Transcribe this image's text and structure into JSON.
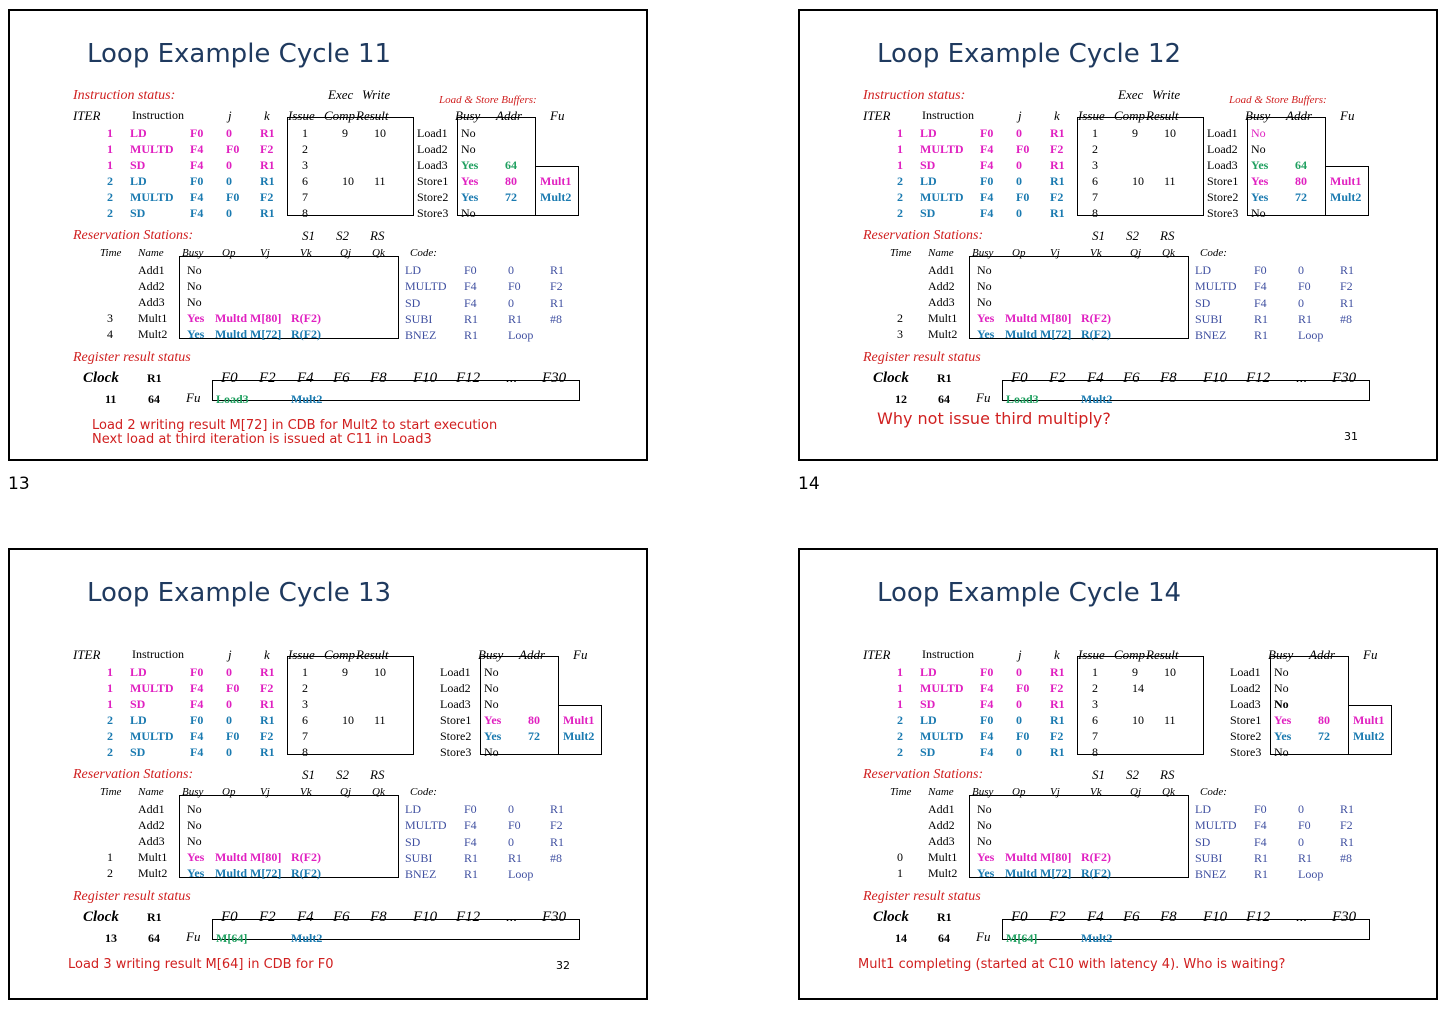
{
  "slides": [
    {
      "page_number": "13",
      "title": "Loop Example Cycle 11",
      "show_instruction_status_label": true,
      "show_buffers_label": true,
      "slide_number": "",
      "instr_header_top": [
        "Exec",
        "Write"
      ],
      "instr_header": [
        "ITER",
        "Instruction",
        "j",
        "k",
        "Issue",
        "Comp",
        "Result"
      ],
      "instructions": [
        {
          "iter": "1",
          "op": "LD",
          "j": "F0",
          "k": "0",
          "kr": "R1",
          "issue": "1",
          "comp": "9",
          "result": "10",
          "color": "mag"
        },
        {
          "iter": "1",
          "op": "MULTD",
          "j": "F4",
          "k": "F0",
          "kr": "F2",
          "issue": "2",
          "comp": "",
          "result": "",
          "color": "mag"
        },
        {
          "iter": "1",
          "op": "SD",
          "j": "F4",
          "k": "0",
          "kr": "R1",
          "issue": "3",
          "comp": "",
          "result": "",
          "color": "mag"
        },
        {
          "iter": "2",
          "op": "LD",
          "j": "F0",
          "k": "0",
          "kr": "R1",
          "issue": "6",
          "comp": "10",
          "result": "11",
          "color": "blu"
        },
        {
          "iter": "2",
          "op": "MULTD",
          "j": "F4",
          "k": "F0",
          "kr": "F2",
          "issue": "7",
          "comp": "",
          "result": "",
          "color": "blu"
        },
        {
          "iter": "2",
          "op": "SD",
          "j": "F4",
          "k": "0",
          "kr": "R1",
          "issue": "8",
          "comp": "",
          "result": "",
          "color": "blu"
        }
      ],
      "buffers_label": "Load & Store Buffers:",
      "buffers_header": [
        "Busy",
        "Addr",
        "Fu"
      ],
      "buffers": [
        {
          "name": "Load1",
          "busy": "No",
          "addr": "",
          "fu": "",
          "color": ""
        },
        {
          "name": "Load2",
          "busy": "No",
          "addr": "",
          "fu": "",
          "color": ""
        },
        {
          "name": "Load3",
          "busy": "Yes",
          "addr": "64",
          "fu": "",
          "color": "grn"
        },
        {
          "name": "Store1",
          "busy": "Yes",
          "addr": "80",
          "fu": "Mult1",
          "color": "mag"
        },
        {
          "name": "Store2",
          "busy": "Yes",
          "addr": "72",
          "fu": "Mult2",
          "color": "blu"
        },
        {
          "name": "Store3",
          "busy": "No",
          "addr": "",
          "fu": "",
          "color": ""
        }
      ],
      "rs_label": "Reservation Stations:",
      "rs_header_top": [
        "S1",
        "S2",
        "RS"
      ],
      "rs_header": [
        "Time",
        "Name",
        "Busy",
        "Op",
        "Vj",
        "Vk",
        "Qj",
        "Qk"
      ],
      "rs": [
        {
          "time": "",
          "name": "Add1",
          "busy": "No",
          "op": "",
          "vj": "",
          "vk": "",
          "color": ""
        },
        {
          "time": "",
          "name": "Add2",
          "busy": "No",
          "op": "",
          "vj": "",
          "vk": "",
          "color": ""
        },
        {
          "time": "",
          "name": "Add3",
          "busy": "No",
          "op": "",
          "vj": "",
          "vk": "",
          "color": ""
        },
        {
          "time": "3",
          "name": "Mult1",
          "busy": "Yes",
          "op": "Multd",
          "vj": "M[80]",
          "vk": "R(F2)",
          "color": "mag"
        },
        {
          "time": "4",
          "name": "Mult2",
          "busy": "Yes",
          "op": "Multd",
          "vj": "M[72]",
          "vk": "R(F2)",
          "color": "blu"
        }
      ],
      "code_label": "Code:",
      "code": [
        [
          "LD",
          "F0",
          "0",
          "R1"
        ],
        [
          "MULTD",
          "F4",
          "F0",
          "F2"
        ],
        [
          "SD",
          "F4",
          "0",
          "R1"
        ],
        [
          "SUBI",
          "R1",
          "R1",
          "#8"
        ],
        [
          "BNEZ",
          "R1",
          "Loop",
          ""
        ]
      ],
      "reg_label": "Register result status",
      "reg_header": [
        "Clock",
        "R1",
        "F0",
        "F2",
        "F4",
        "F6",
        "F8",
        "F10",
        "F12",
        "...",
        "F30"
      ],
      "clock": "11",
      "r1": "64",
      "fu_label": "Fu",
      "reg_f0": "Load3",
      "reg_f0_color": "grn",
      "reg_f4": "Mult2",
      "notes": [
        "Load 2 writing result M[72] in CDB for Mult2 to start execution",
        "Next load at third iteration is issued at C11 in Load3"
      ],
      "load3_bold": false
    },
    {
      "page_number": "14",
      "title": "Loop Example Cycle 12",
      "show_instruction_status_label": true,
      "show_buffers_label": true,
      "slide_number": "31",
      "instr_header_top": [
        "Exec",
        "Write"
      ],
      "instr_header": [
        "ITER",
        "Instruction",
        "j",
        "k",
        "Issue",
        "Comp",
        "Result"
      ],
      "instructions": [
        {
          "iter": "1",
          "op": "LD",
          "j": "F0",
          "k": "0",
          "kr": "R1",
          "issue": "1",
          "comp": "9",
          "result": "10",
          "color": "mag"
        },
        {
          "iter": "1",
          "op": "MULTD",
          "j": "F4",
          "k": "F0",
          "kr": "F2",
          "issue": "2",
          "comp": "",
          "result": "",
          "color": "mag"
        },
        {
          "iter": "1",
          "op": "SD",
          "j": "F4",
          "k": "0",
          "kr": "R1",
          "issue": "3",
          "comp": "",
          "result": "",
          "color": "mag"
        },
        {
          "iter": "2",
          "op": "LD",
          "j": "F0",
          "k": "0",
          "kr": "R1",
          "issue": "6",
          "comp": "10",
          "result": "11",
          "color": "blu"
        },
        {
          "iter": "2",
          "op": "MULTD",
          "j": "F4",
          "k": "F0",
          "kr": "F2",
          "issue": "7",
          "comp": "",
          "result": "",
          "color": "blu"
        },
        {
          "iter": "2",
          "op": "SD",
          "j": "F4",
          "k": "0",
          "kr": "R1",
          "issue": "8",
          "comp": "",
          "result": "",
          "color": "blu"
        }
      ],
      "buffers_label": "Load & Store Buffers:",
      "buffers_header": [
        "Busy",
        "Addr",
        "Fu"
      ],
      "buffers": [
        {
          "name": "Load1",
          "busy": "No",
          "addr": "",
          "fu": "",
          "color": "magnorm"
        },
        {
          "name": "Load2",
          "busy": "No",
          "addr": "",
          "fu": "",
          "color": ""
        },
        {
          "name": "Load3",
          "busy": "Yes",
          "addr": "64",
          "fu": "",
          "color": "grn"
        },
        {
          "name": "Store1",
          "busy": "Yes",
          "addr": "80",
          "fu": "Mult1",
          "color": "mag"
        },
        {
          "name": "Store2",
          "busy": "Yes",
          "addr": "72",
          "fu": "Mult2",
          "color": "blu"
        },
        {
          "name": "Store3",
          "busy": "No",
          "addr": "",
          "fu": "",
          "color": ""
        }
      ],
      "rs_label": "Reservation Stations:",
      "rs_header_top": [
        "S1",
        "S2",
        "RS"
      ],
      "rs_header": [
        "Time",
        "Name",
        "Busy",
        "Op",
        "Vj",
        "Vk",
        "Qj",
        "Qk"
      ],
      "rs": [
        {
          "time": "",
          "name": "Add1",
          "busy": "No",
          "op": "",
          "vj": "",
          "vk": "",
          "color": ""
        },
        {
          "time": "",
          "name": "Add2",
          "busy": "No",
          "op": "",
          "vj": "",
          "vk": "",
          "color": ""
        },
        {
          "time": "",
          "name": "Add3",
          "busy": "No",
          "op": "",
          "vj": "",
          "vk": "",
          "color": ""
        },
        {
          "time": "2",
          "name": "Mult1",
          "busy": "Yes",
          "op": "Multd",
          "vj": "M[80]",
          "vk": "R(F2)",
          "color": "mag"
        },
        {
          "time": "3",
          "name": "Mult2",
          "busy": "Yes",
          "op": "Multd",
          "vj": "M[72]",
          "vk": "R(F2)",
          "color": "blu"
        }
      ],
      "code_label": "Code:",
      "code": [
        [
          "LD",
          "F0",
          "0",
          "R1"
        ],
        [
          "MULTD",
          "F4",
          "F0",
          "F2"
        ],
        [
          "SD",
          "F4",
          "0",
          "R1"
        ],
        [
          "SUBI",
          "R1",
          "R1",
          "#8"
        ],
        [
          "BNEZ",
          "R1",
          "Loop",
          ""
        ]
      ],
      "reg_label": "Register result status",
      "reg_header": [
        "Clock",
        "R1",
        "F0",
        "F2",
        "F4",
        "F6",
        "F8",
        "F10",
        "F12",
        "...",
        "F30"
      ],
      "clock": "12",
      "r1": "64",
      "fu_label": "Fu",
      "reg_f0": "Load3",
      "reg_f0_color": "grn",
      "reg_f4": "Mult2",
      "notes": [
        "Why not issue third multiply?"
      ],
      "load3_bold": false
    },
    {
      "page_number": "",
      "title": "Loop Example Cycle 13",
      "show_instruction_status_label": false,
      "show_buffers_label": false,
      "slide_number": "32",
      "instr_header_top": [
        "",
        ""
      ],
      "instr_header": [
        "ITER",
        "Instruction",
        "j",
        "k",
        "Issue",
        "Comp",
        "Result"
      ],
      "instructions": [
        {
          "iter": "1",
          "op": "LD",
          "j": "F0",
          "k": "0",
          "kr": "R1",
          "issue": "1",
          "comp": "9",
          "result": "10",
          "color": "mag"
        },
        {
          "iter": "1",
          "op": "MULTD",
          "j": "F4",
          "k": "F0",
          "kr": "F2",
          "issue": "2",
          "comp": "",
          "result": "",
          "color": "mag"
        },
        {
          "iter": "1",
          "op": "SD",
          "j": "F4",
          "k": "0",
          "kr": "R1",
          "issue": "3",
          "comp": "",
          "result": "",
          "color": "mag"
        },
        {
          "iter": "2",
          "op": "LD",
          "j": "F0",
          "k": "0",
          "kr": "R1",
          "issue": "6",
          "comp": "10",
          "result": "11",
          "color": "blu"
        },
        {
          "iter": "2",
          "op": "MULTD",
          "j": "F4",
          "k": "F0",
          "kr": "F2",
          "issue": "7",
          "comp": "",
          "result": "",
          "color": "blu"
        },
        {
          "iter": "2",
          "op": "SD",
          "j": "F4",
          "k": "0",
          "kr": "R1",
          "issue": "8",
          "comp": "",
          "result": "",
          "color": "blu"
        }
      ],
      "buffers_label": "",
      "buffers_header": [
        "Busy",
        "Addr",
        "Fu"
      ],
      "buffers": [
        {
          "name": "Load1",
          "busy": "No",
          "addr": "",
          "fu": "",
          "color": ""
        },
        {
          "name": "Load2",
          "busy": "No",
          "addr": "",
          "fu": "",
          "color": ""
        },
        {
          "name": "Load3",
          "busy": "No",
          "addr": "",
          "fu": "",
          "color": ""
        },
        {
          "name": "Store1",
          "busy": "Yes",
          "addr": "80",
          "fu": "Mult1",
          "color": "mag"
        },
        {
          "name": "Store2",
          "busy": "Yes",
          "addr": "72",
          "fu": "Mult2",
          "color": "blu"
        },
        {
          "name": "Store3",
          "busy": "No",
          "addr": "",
          "fu": "",
          "color": ""
        }
      ],
      "rs_label": "Reservation Stations:",
      "rs_header_top": [
        "S1",
        "S2",
        "RS"
      ],
      "rs_header": [
        "Time",
        "Name",
        "Busy",
        "Op",
        "Vj",
        "Vk",
        "Qj",
        "Qk"
      ],
      "rs": [
        {
          "time": "",
          "name": "Add1",
          "busy": "No",
          "op": "",
          "vj": "",
          "vk": "",
          "color": ""
        },
        {
          "time": "",
          "name": "Add2",
          "busy": "No",
          "op": "",
          "vj": "",
          "vk": "",
          "color": ""
        },
        {
          "time": "",
          "name": "Add3",
          "busy": "No",
          "op": "",
          "vj": "",
          "vk": "",
          "color": ""
        },
        {
          "time": "1",
          "name": "Mult1",
          "busy": "Yes",
          "op": "Multd",
          "vj": "M[80]",
          "vk": "R(F2)",
          "color": "mag"
        },
        {
          "time": "2",
          "name": "Mult2",
          "busy": "Yes",
          "op": "Multd",
          "vj": "M[72]",
          "vk": "R(F2)",
          "color": "blu"
        }
      ],
      "code_label": "Code:",
      "code": [
        [
          "LD",
          "F0",
          "0",
          "R1"
        ],
        [
          "MULTD",
          "F4",
          "F0",
          "F2"
        ],
        [
          "SD",
          "F4",
          "0",
          "R1"
        ],
        [
          "SUBI",
          "R1",
          "R1",
          "#8"
        ],
        [
          "BNEZ",
          "R1",
          "Loop",
          ""
        ]
      ],
      "reg_label": "Register result status",
      "reg_header": [
        "Clock",
        "R1",
        "F0",
        "F2",
        "F4",
        "F6",
        "F8",
        "F10",
        "F12",
        "...",
        "F30"
      ],
      "clock": "13",
      "r1": "64",
      "fu_label": "Fu",
      "reg_f0": "M[64]",
      "reg_f0_color": "grn",
      "reg_f4": "Mult2",
      "notes": [
        "Load 3 writing result M[64] in CDB for F0"
      ],
      "load3_bold": false
    },
    {
      "page_number": "",
      "title": "Loop Example Cycle 14",
      "show_instruction_status_label": false,
      "show_buffers_label": false,
      "slide_number": "",
      "instr_header_top": [
        "",
        ""
      ],
      "instr_header": [
        "ITER",
        "Instruction",
        "j",
        "k",
        "Issue",
        "Comp",
        "Result"
      ],
      "instructions": [
        {
          "iter": "1",
          "op": "LD",
          "j": "F0",
          "k": "0",
          "kr": "R1",
          "issue": "1",
          "comp": "9",
          "result": "10",
          "color": "mag"
        },
        {
          "iter": "1",
          "op": "MULTD",
          "j": "F4",
          "k": "F0",
          "kr": "F2",
          "issue": "2",
          "comp": "14",
          "result": "",
          "color": "mag"
        },
        {
          "iter": "1",
          "op": "SD",
          "j": "F4",
          "k": "0",
          "kr": "R1",
          "issue": "3",
          "comp": "",
          "result": "",
          "color": "mag"
        },
        {
          "iter": "2",
          "op": "LD",
          "j": "F0",
          "k": "0",
          "kr": "R1",
          "issue": "6",
          "comp": "10",
          "result": "11",
          "color": "blu"
        },
        {
          "iter": "2",
          "op": "MULTD",
          "j": "F4",
          "k": "F0",
          "kr": "F2",
          "issue": "7",
          "comp": "",
          "result": "",
          "color": "blu"
        },
        {
          "iter": "2",
          "op": "SD",
          "j": "F4",
          "k": "0",
          "kr": "R1",
          "issue": "8",
          "comp": "",
          "result": "",
          "color": "blu"
        }
      ],
      "buffers_label": "",
      "buffers_header": [
        "Busy",
        "Addr",
        "Fu"
      ],
      "buffers": [
        {
          "name": "Load1",
          "busy": "No",
          "addr": "",
          "fu": "",
          "color": ""
        },
        {
          "name": "Load2",
          "busy": "No",
          "addr": "",
          "fu": "",
          "color": ""
        },
        {
          "name": "Load3",
          "busy": "No",
          "addr": "",
          "fu": "",
          "color": "boldblack"
        },
        {
          "name": "Store1",
          "busy": "Yes",
          "addr": "80",
          "fu": "Mult1",
          "color": "mag"
        },
        {
          "name": "Store2",
          "busy": "Yes",
          "addr": "72",
          "fu": "Mult2",
          "color": "blu"
        },
        {
          "name": "Store3",
          "busy": "No",
          "addr": "",
          "fu": "",
          "color": ""
        }
      ],
      "rs_label": "Reservation Stations:",
      "rs_header_top": [
        "S1",
        "S2",
        "RS"
      ],
      "rs_header": [
        "Time",
        "Name",
        "Busy",
        "Op",
        "Vj",
        "Vk",
        "Qj",
        "Qk"
      ],
      "rs": [
        {
          "time": "",
          "name": "Add1",
          "busy": "No",
          "op": "",
          "vj": "",
          "vk": "",
          "color": ""
        },
        {
          "time": "",
          "name": "Add2",
          "busy": "No",
          "op": "",
          "vj": "",
          "vk": "",
          "color": ""
        },
        {
          "time": "",
          "name": "Add3",
          "busy": "No",
          "op": "",
          "vj": "",
          "vk": "",
          "color": ""
        },
        {
          "time": "0",
          "name": "Mult1",
          "busy": "Yes",
          "op": "Multd",
          "vj": "M[80]",
          "vk": "R(F2)",
          "color": "mag"
        },
        {
          "time": "1",
          "name": "Mult2",
          "busy": "Yes",
          "op": "Multd",
          "vj": "M[72]",
          "vk": "R(F2)",
          "color": "blu"
        }
      ],
      "code_label": "Code:",
      "code": [
        [
          "LD",
          "F0",
          "0",
          "R1"
        ],
        [
          "MULTD",
          "F4",
          "F0",
          "F2"
        ],
        [
          "SD",
          "F4",
          "0",
          "R1"
        ],
        [
          "SUBI",
          "R1",
          "R1",
          "#8"
        ],
        [
          "BNEZ",
          "R1",
          "Loop",
          ""
        ]
      ],
      "reg_label": "Register result status",
      "reg_header": [
        "Clock",
        "R1",
        "F0",
        "F2",
        "F4",
        "F6",
        "F8",
        "F10",
        "F12",
        "...",
        "F30"
      ],
      "clock": "14",
      "r1": "64",
      "fu_label": "Fu",
      "reg_f0": "M[64]",
      "reg_f0_color": "grn",
      "reg_f4": "Mult2",
      "notes": [
        "Mult1 completing (started at C10 with latency 4). Who is waiting?"
      ],
      "load3_bold": true
    }
  ]
}
